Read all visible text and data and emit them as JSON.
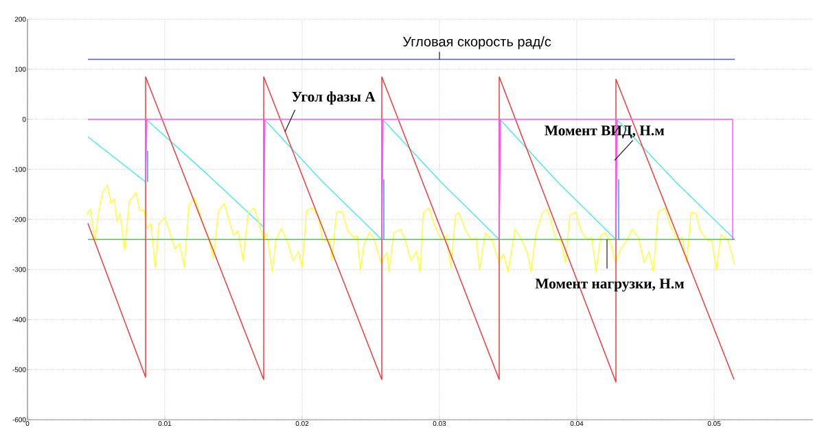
{
  "chart_data": {
    "type": "line",
    "xlim": [
      0,
      0.0572
    ],
    "ylim": [
      -600,
      200
    ],
    "xticks": [
      0,
      0.01,
      0.02,
      0.03,
      0.04,
      0.05
    ],
    "yticks": [
      -600,
      -500,
      -400,
      -300,
      -200,
      -100,
      0,
      100,
      200
    ],
    "grid": true,
    "series": [
      {
        "color": "#5858f0",
        "x": [
          0.0044,
          0.0515
        ],
        "values": [
          120,
          120
        ]
      },
      {
        "color": "#48ecec",
        "x": [
          0.0044,
          0.0086,
          0.00865,
          0.0129,
          0.0172,
          0.01725,
          0.0215,
          0.0258,
          0.02585,
          0.0301,
          0.03435,
          0.0344,
          0.0386,
          0.04285,
          0.0429,
          0.0472,
          0.0515
        ],
        "values": [
          -35,
          -125,
          0,
          -105,
          -215,
          0,
          -125,
          -240,
          0,
          -125,
          -240,
          0,
          -125,
          -240,
          0,
          -125,
          -240
        ]
      },
      {
        "color": "#ffff33",
        "x": [
          0.00433,
          0.00458,
          0.00492,
          0.00517,
          0.0055,
          0.00583,
          0.00608,
          0.00633,
          0.0065,
          0.00675,
          0.00708,
          0.00742,
          0.00792,
          0.00817,
          0.0085,
          0.00867,
          0.009,
          0.0093,
          0.00958,
          0.01,
          0.01033,
          0.01075,
          0.01108,
          0.01142,
          0.01175,
          0.01217,
          0.01267,
          0.01317,
          0.01353,
          0.01392,
          0.01433,
          0.01467,
          0.015,
          0.01533,
          0.0157,
          0.01608,
          0.0165,
          0.01683,
          0.0172,
          0.01742,
          0.01783,
          0.01808,
          0.0185,
          0.019,
          0.01933,
          0.01975,
          0.02,
          0.02033,
          0.02075,
          0.02117,
          0.0215,
          0.022,
          0.02217,
          0.0225,
          0.02292,
          0.02333,
          0.02375,
          0.024,
          0.02425,
          0.0245,
          0.02492,
          0.02525,
          0.02575,
          0.02617,
          0.02633,
          0.02667,
          0.02717,
          0.0275,
          0.02792,
          0.02833,
          0.02858,
          0.02883,
          0.02925,
          0.02967,
          0.03017,
          0.0305,
          0.03083,
          0.03117,
          0.03142,
          0.03183,
          0.03233,
          0.03267,
          0.03292,
          0.03333,
          0.03383,
          0.03433,
          0.03467,
          0.035,
          0.0355,
          0.036,
          0.03642,
          0.03667,
          0.037,
          0.0375,
          0.03783,
          0.03817,
          0.0385,
          0.03883,
          0.03917,
          0.0395,
          0.03992,
          0.04033,
          0.04075,
          0.04108,
          0.04142,
          0.04175,
          0.04208,
          0.0425,
          0.04283,
          0.04317,
          0.04367,
          0.044,
          0.0445,
          0.04492,
          0.04525,
          0.04558,
          0.04592,
          0.04642,
          0.04683,
          0.04733,
          0.04767,
          0.048,
          0.04833,
          0.04867,
          0.049,
          0.0495,
          0.04983,
          0.05017,
          0.0505,
          0.051,
          0.0515
        ],
        "values": [
          -191,
          -179,
          -243,
          -186,
          -145,
          -131,
          -168,
          -159,
          -204,
          -188,
          -262,
          -163,
          -147,
          -182,
          -182,
          -218,
          -209,
          -296,
          -209,
          -195,
          -223,
          -259,
          -248,
          -296,
          -173,
          -157,
          -200,
          -236,
          -278,
          -182,
          -168,
          -200,
          -232,
          -223,
          -282,
          -186,
          -177,
          -205,
          -241,
          -227,
          -305,
          -241,
          -218,
          -250,
          -282,
          -264,
          -296,
          -182,
          -177,
          -195,
          -241,
          -241,
          -282,
          -186,
          -184,
          -223,
          -236,
          -232,
          -301,
          -250,
          -225,
          -241,
          -287,
          -266,
          -305,
          -227,
          -220,
          -241,
          -282,
          -264,
          -305,
          -186,
          -177,
          -214,
          -241,
          -232,
          -296,
          -191,
          -186,
          -218,
          -241,
          -236,
          -301,
          -227,
          -241,
          -287,
          -269,
          -305,
          -220,
          -241,
          -269,
          -305,
          -232,
          -186,
          -179,
          -209,
          -241,
          -241,
          -287,
          -191,
          -186,
          -223,
          -241,
          -236,
          -305,
          -232,
          -227,
          -250,
          -287,
          -260,
          -241,
          -220,
          -236,
          -287,
          -264,
          -305,
          -186,
          -177,
          -214,
          -241,
          -236,
          -287,
          -186,
          -188,
          -223,
          -241,
          -241,
          -301,
          -230,
          -241,
          -291
        ]
      },
      {
        "color": "#33dd33",
        "x": [
          0.0044,
          0.0515
        ],
        "values": [
          -240,
          -240
        ]
      },
      {
        "color": "#ff3333",
        "x": [
          0.0044,
          0.0086,
          0.0086,
          0.0172,
          0.0172,
          0.0258,
          0.0258,
          0.03435,
          0.03435,
          0.04285,
          0.04285,
          0.05145
        ],
        "values": [
          -208,
          -515,
          85,
          -520,
          85,
          -520,
          85,
          -520,
          85,
          -525,
          80,
          -520
        ]
      },
      {
        "color": "#ff55ff",
        "x": [
          0.0044,
          0.0086,
          0.0086,
          0.0087,
          0.0172,
          0.0172,
          0.0173,
          0.0258,
          0.0258,
          0.0259,
          0.03435,
          0.03435,
          0.03445,
          0.04285,
          0.04285,
          0.04295,
          0.05135,
          0.05135
        ],
        "values": [
          0,
          0,
          -125,
          0,
          0,
          -215,
          0,
          0,
          -240,
          0,
          0,
          -240,
          0,
          0,
          -240,
          0,
          0,
          -240
        ]
      },
      {
        "color": "#3399ff",
        "x": [
          0.00875,
          0.00875,
          0.0172,
          0.02595,
          0.02595,
          0.0343,
          0.04305,
          0.04305
        ],
        "values": [
          -63,
          -125,
          null,
          -120,
          -240,
          null,
          -120,
          -240
        ]
      }
    ],
    "annotations": [
      {
        "text": "Угловая скорость рад/с",
        "x": 0.03,
        "y": 120
      },
      {
        "text": "Угол фазы А",
        "x": 0.01875,
        "y": -25
      },
      {
        "text": "Момент ВИД, Н.м",
        "x": 0.04275,
        "y": -82
      },
      {
        "text": "Момент нагрузки, Н.м",
        "x": 0.0422,
        "y": -240
      }
    ]
  }
}
